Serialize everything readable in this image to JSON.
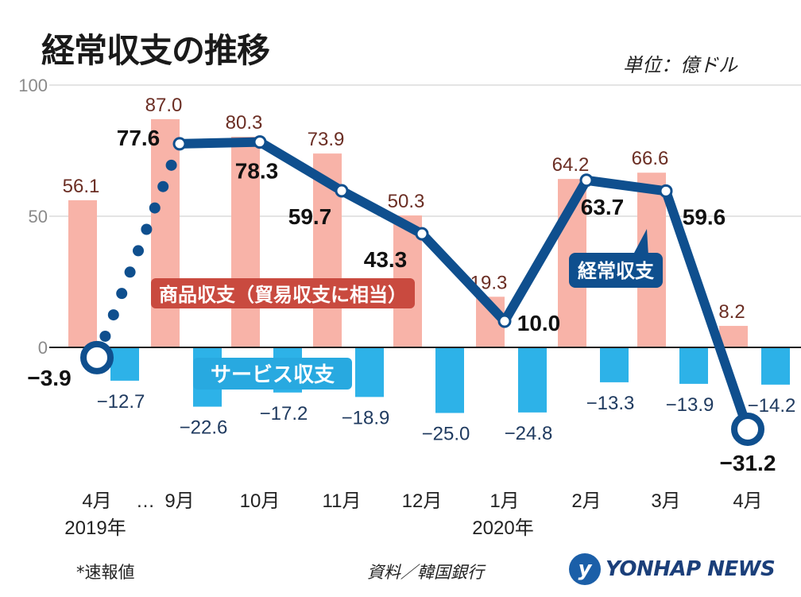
{
  "title": "経常収支の推移",
  "unit": "単位：億ドル",
  "footnote": "*速報値",
  "source": "資料／韓国銀行",
  "logo": "YONHAP NEWS",
  "colors": {
    "goods": "#f8b3a8",
    "services": "#2db2e8",
    "current": "#0f4f8e",
    "goodsLabelBg": "#c94a3f",
    "servicesLabelBg": "#28a9e0",
    "goodsValueText": "#6b2e24",
    "servicesValueText": "#1f3a5f"
  },
  "chart_data": {
    "type": "bar",
    "categories": [
      "4月",
      "9月",
      "10月",
      "11月",
      "12月",
      "1月",
      "2月",
      "3月",
      "4月"
    ],
    "year_labels": [
      "2019年",
      "",
      "",
      "",
      "",
      "2020年",
      "",
      "",
      ""
    ],
    "gap_marker": "…",
    "ylim": [
      -35,
      100
    ],
    "yticks": [
      0,
      50,
      100
    ],
    "series": [
      {
        "name": "商品収支（貿易収支に相当）",
        "type": "bar",
        "values": [
          56.1,
          87.0,
          80.3,
          73.9,
          50.3,
          19.3,
          64.2,
          66.6,
          8.2
        ],
        "labels": [
          "56.1",
          "87.0",
          "80.3",
          "73.9",
          "50.3",
          "19.3",
          "64.2",
          "66.6",
          "8.2"
        ]
      },
      {
        "name": "サービス収支",
        "type": "bar",
        "values": [
          -12.7,
          -22.6,
          -17.2,
          -18.9,
          -25.0,
          -24.8,
          -13.3,
          -13.9,
          -14.2
        ],
        "labels": [
          "−12.7",
          "−22.6",
          "−17.2",
          "−18.9",
          "−25.0",
          "−24.8",
          "−13.3",
          "−13.9",
          "−14.2"
        ]
      },
      {
        "name": "経常収支",
        "type": "line",
        "values": [
          -3.9,
          77.6,
          78.3,
          59.7,
          43.3,
          10.0,
          63.7,
          59.6,
          -31.2
        ],
        "labels": [
          "−3.9",
          "77.6",
          "78.3",
          "59.7",
          "43.3",
          "10.0",
          "63.7",
          "59.6",
          "−31.2"
        ]
      }
    ]
  }
}
